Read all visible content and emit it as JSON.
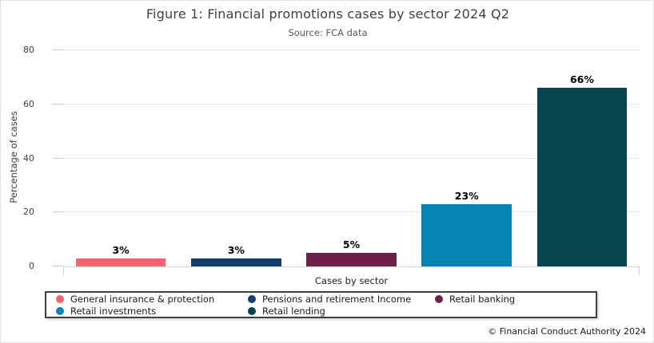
{
  "title": "Figure 1: Financial promotions cases by sector 2024 Q2",
  "subtitle": "Source: FCA data",
  "footer": "© Financial Conduct Authority 2024",
  "chart_data": {
    "type": "bar",
    "title": "Figure 1: Financial promotions cases by sector 2024 Q2",
    "subtitle": "Source: FCA data",
    "xlabel": "Cases by sector",
    "ylabel": "Percentage of cases",
    "ylim": [
      0,
      80
    ],
    "yticks": [
      0,
      20,
      40,
      60,
      80
    ],
    "grid": true,
    "legend_position": "bottom",
    "categories": [
      "General insurance & protection",
      "Pensions and retirement Income",
      "Retail banking",
      "Retail investments",
      "Retail lending"
    ],
    "values": [
      3,
      3,
      5,
      23,
      66
    ],
    "value_labels": [
      "3%",
      "3%",
      "5%",
      "23%",
      "66%"
    ],
    "colors": [
      "#f8636d",
      "#123f6b",
      "#6e2049",
      "#0583b5",
      "#05454f"
    ]
  }
}
